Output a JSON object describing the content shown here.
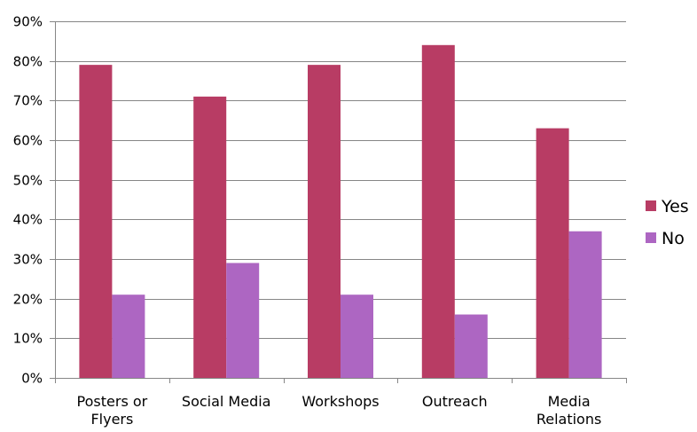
{
  "chart_data": {
    "type": "bar",
    "title": "",
    "xlabel": "",
    "ylabel": "",
    "categories": [
      [
        "Posters or",
        "Flyers"
      ],
      [
        "Social Media"
      ],
      [
        "Workshops"
      ],
      [
        "Outreach"
      ],
      [
        "Media",
        "Relations"
      ]
    ],
    "series": [
      {
        "name": "Yes",
        "color": "#b83c64",
        "values": [
          79,
          71,
          79,
          84,
          63
        ]
      },
      {
        "name": "No",
        "color": "#ad66c2",
        "values": [
          21,
          29,
          21,
          16,
          37
        ]
      }
    ],
    "ylim": [
      0,
      90
    ],
    "yticks": [
      0,
      10,
      20,
      30,
      40,
      50,
      60,
      70,
      80,
      90
    ],
    "ytick_labels": [
      "0%",
      "10%",
      "20%",
      "30%",
      "40%",
      "50%",
      "60%",
      "70%",
      "80%",
      "90%"
    ],
    "grid": true,
    "legend": "right"
  }
}
